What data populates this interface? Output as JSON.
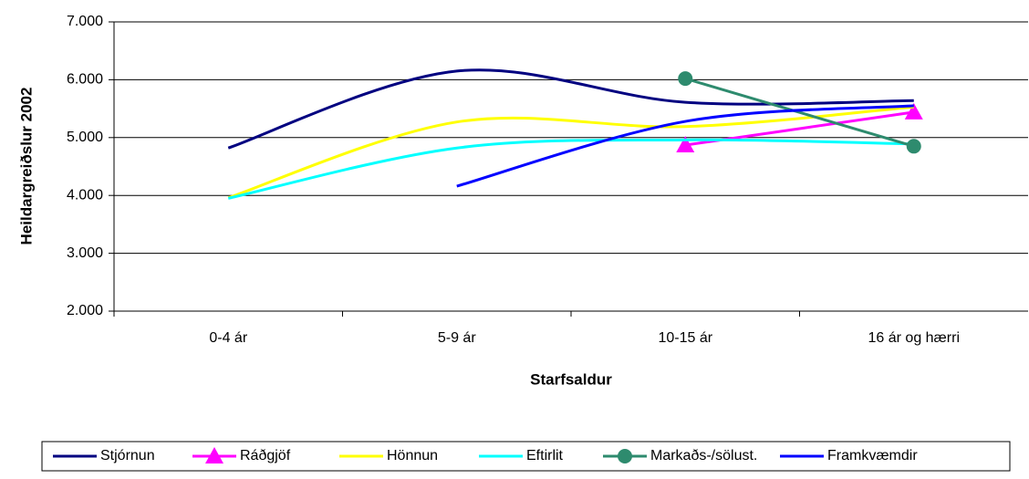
{
  "chart_data": {
    "type": "line",
    "smooth": true,
    "x_label": "Starfsaldur",
    "y_label": "Heildargreiðslur 2002",
    "categories": [
      "0-4 ár",
      "5-9 ár",
      "10-15 ár",
      "16 ár og hærri"
    ],
    "ylim": [
      2000,
      7000
    ],
    "yticks": [
      {
        "value": 2000,
        "label": "2.000"
      },
      {
        "value": 3000,
        "label": "3.000"
      },
      {
        "value": 4000,
        "label": "4.000"
      },
      {
        "value": 5000,
        "label": "5.000"
      },
      {
        "value": 6000,
        "label": "6.000"
      },
      {
        "value": 7000,
        "label": "7.000"
      }
    ],
    "grid": true,
    "legend": "bottom",
    "series": [
      {
        "name": "Stjórnun",
        "color": "#000080",
        "values": [
          4820,
          6150,
          5610,
          5640
        ]
      },
      {
        "name": "Ráðgjöf",
        "color": "#ff00ff",
        "marker": "triangle",
        "values": [
          null,
          null,
          4870,
          5440
        ]
      },
      {
        "name": "Hönnun",
        "color": "#ffff00",
        "values": [
          3960,
          5270,
          5190,
          5530
        ]
      },
      {
        "name": "Eftirlit",
        "color": "#00ffff",
        "values": [
          3950,
          4820,
          4960,
          4890
        ]
      },
      {
        "name": "Markaðs-/sölust.",
        "color": "#2e8b6e",
        "marker": "circle",
        "values": [
          null,
          null,
          6020,
          4850
        ]
      },
      {
        "name": "Framkvæmdir",
        "color": "#0000ff",
        "values": [
          null,
          4160,
          5280,
          5550
        ]
      }
    ]
  }
}
